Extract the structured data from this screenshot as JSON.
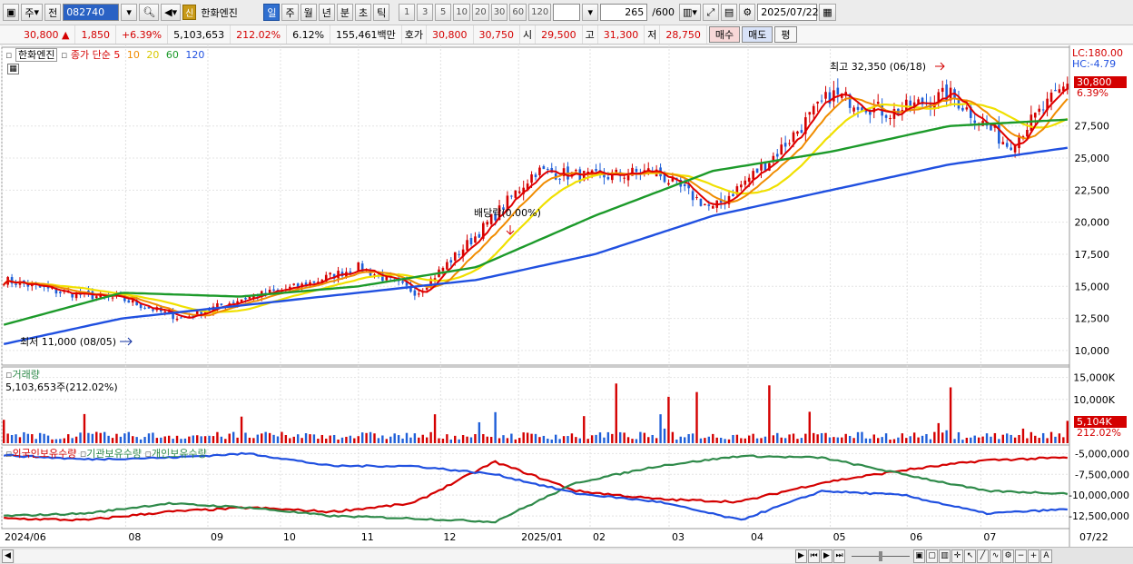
{
  "toolbar": {
    "market_label": "주",
    "prev_label": "전",
    "code": "082740",
    "badge": "신",
    "stock_name": "한화엔진",
    "periods": [
      "일",
      "주",
      "월",
      "년",
      "분",
      "초",
      "틱"
    ],
    "intervals": [
      "1",
      "3",
      "5",
      "10",
      "20",
      "30",
      "60",
      "120"
    ],
    "count": "265",
    "count_total": "/600",
    "date": "2025/07/22"
  },
  "quote": {
    "price": "30,800",
    "arrow": "▲",
    "change": "1,850",
    "change_pct": "+6.39%",
    "volume": "5,103,653",
    "volume_ratio": "212.02%",
    "turnover": "6.12%",
    "amount": "155,461백만",
    "ask_label": "호가",
    "ask1": "30,800",
    "ask2": "30,750",
    "open_label": "시",
    "open": "29,500",
    "high_label": "고",
    "high": "31,300",
    "low_label": "저",
    "low": "28,750",
    "buy_label": "매수",
    "sell_label": "매도",
    "eval_label": "평"
  },
  "price_panel": {
    "legend_name": "한화엔진",
    "legend_type": "종가 단순",
    "ma_labels": [
      "5",
      "10",
      "20",
      "60",
      "120"
    ],
    "lc": "LC:180.00",
    "hc": "HC:-4.79",
    "high_note": "최고 32,350 (06/18)",
    "low_note": "최저 11,000 (08/05)",
    "dividend_note": "배당락(0.00%)",
    "current_price_tag": "30,800",
    "current_pct_tag": "6.39%"
  },
  "volume_panel": {
    "title": "거래량",
    "value": "5,103,653주(212.02%)",
    "axis": [
      "15,000K",
      "10,000K"
    ],
    "tag": "5,104K",
    "tag_pct": "212.02%"
  },
  "holdings_panel": {
    "legend": [
      "외국인보유수량",
      "기관보유수량",
      "개인보유수량"
    ],
    "axis": [
      "-5,000,000",
      "-7,500,000",
      "-10,000,000",
      "-12,500,000"
    ]
  },
  "date_axis": [
    "2024/06",
    "08",
    "09",
    "10",
    "11",
    "12",
    "2025/01",
    "02",
    "03",
    "04",
    "05",
    "06",
    "07",
    "07/22"
  ],
  "colors": {
    "up": "#d40000",
    "down": "#1f5fd8",
    "ma5": "#e00000",
    "ma10": "#f08c00",
    "ma20": "#f0e000",
    "ma60": "#1c9a2a",
    "ma120": "#2050e0",
    "foreign": "#d40000",
    "institution": "#2f8a4a",
    "individual": "#2050e0"
  },
  "chart_data": [
    {
      "type": "line",
      "series_kind": "candlestick_with_moving_averages",
      "x": [
        "2024/06",
        "08",
        "09",
        "10",
        "11",
        "12",
        "2025/01",
        "02",
        "03",
        "04",
        "05",
        "06",
        "07",
        "07/22"
      ],
      "price_anchors": [
        15500,
        14500,
        14000,
        12500,
        14000,
        15000,
        16500,
        14500,
        19000,
        24000,
        23500,
        24000,
        21000,
        25000,
        30000,
        28500,
        30000,
        26000,
        30800
      ],
      "ma120_anchors": [
        10500,
        12500,
        13500,
        14500,
        15500,
        17500,
        20500,
        22500,
        24500,
        25800
      ],
      "ma60_anchors": [
        12000,
        14500,
        14200,
        15000,
        16500,
        20500,
        24000,
        25500,
        27500,
        28000
      ],
      "ylim": [
        9000,
        33500
      ],
      "yticks": [
        10000,
        12500,
        15000,
        17500,
        20000,
        22500,
        25000,
        27500
      ],
      "high": {
        "value": 32350,
        "date": "06/18"
      },
      "low": {
        "value": 11000,
        "date": "08/05"
      },
      "last": 30800
    },
    {
      "type": "bar",
      "name": "거래량",
      "yticks": [
        10000,
        15000
      ],
      "unit": "K",
      "last": 5104
    },
    {
      "type": "line",
      "series": [
        {
          "name": "외국인보유수량"
        },
        {
          "name": "기관보유수량"
        },
        {
          "name": "개인보유수량"
        }
      ],
      "yticks": [
        -5000000,
        -7500000,
        -10000000,
        -12500000
      ]
    }
  ]
}
